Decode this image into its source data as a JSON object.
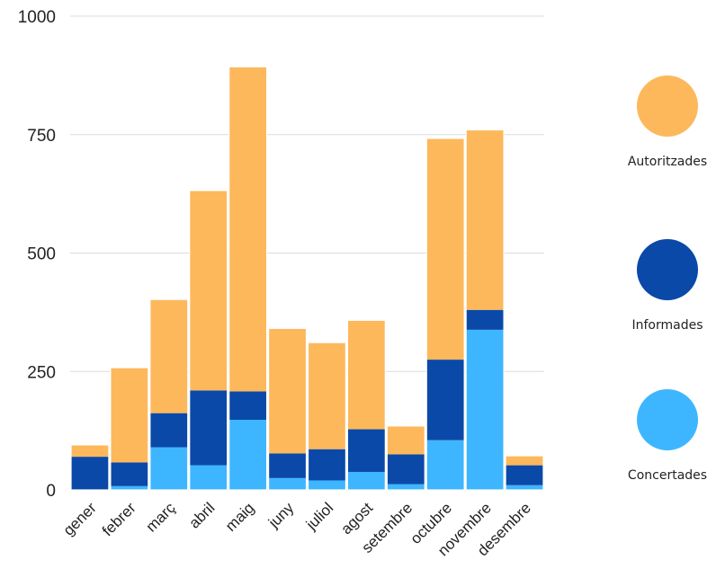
{
  "chart_data": {
    "type": "bar",
    "stacked": true,
    "categories": [
      "gener",
      "febrer",
      "març",
      "abril",
      "maig",
      "juny",
      "juliol",
      "agost",
      "setembre",
      "octubre",
      "novembre",
      "desembre"
    ],
    "series": [
      {
        "name": "Concertades",
        "color": "#3db6ff",
        "values": [
          0,
          8,
          90,
          52,
          148,
          25,
          20,
          38,
          12,
          105,
          338,
          10
        ]
      },
      {
        "name": "Informades",
        "color": "#0a49a8",
        "values": [
          70,
          50,
          72,
          158,
          60,
          52,
          66,
          90,
          63,
          170,
          42,
          42
        ]
      },
      {
        "name": "Autoritzades",
        "color": "#fdb85c",
        "values": [
          25,
          200,
          240,
          422,
          685,
          264,
          225,
          230,
          60,
          467,
          380,
          20
        ]
      }
    ],
    "yticks": [
      "0",
      "250",
      "500",
      "750",
      "1000"
    ],
    "ylim": [
      0,
      1000
    ],
    "grid": true,
    "legend_position": "right"
  },
  "legend": [
    {
      "label": "Autoritzades",
      "color": "#fdb85c"
    },
    {
      "label": "Informades",
      "color": "#0a49a8"
    },
    {
      "label": "Concertades",
      "color": "#3db6ff"
    }
  ]
}
